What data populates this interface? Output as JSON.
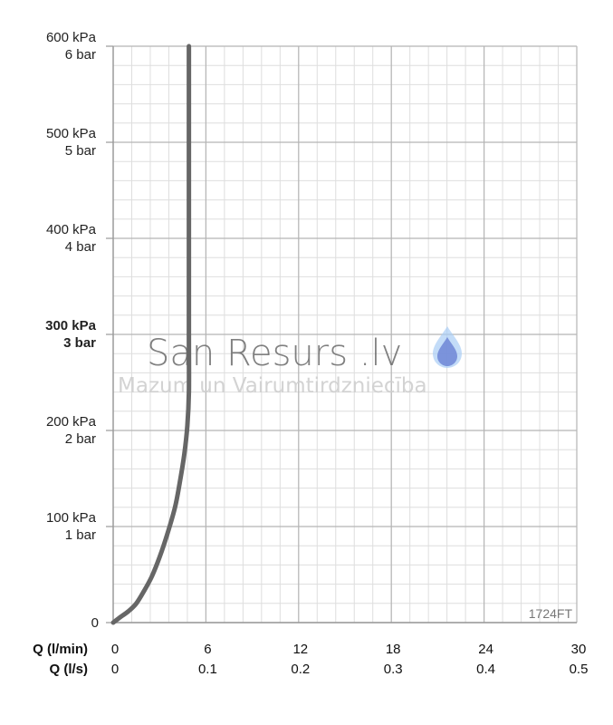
{
  "chart_data": {
    "type": "line",
    "title": "",
    "model_label": "1724FT",
    "x_axis": {
      "label_primary": "Q (l/min)",
      "label_secondary": "Q (l/s)",
      "range": [
        0,
        30
      ],
      "ticks_primary": [
        "0",
        "6",
        "12",
        "18",
        "24",
        "30"
      ],
      "ticks_secondary": [
        "0",
        "0.1",
        "0.2",
        "0.3",
        "0.4",
        "0.5"
      ],
      "tick_values": [
        0,
        6,
        12,
        18,
        24,
        30
      ]
    },
    "y_axis": {
      "range": [
        0,
        600
      ],
      "unit": "kPa",
      "ticks": [
        {
          "value": 0,
          "kpa": "0",
          "bar": ""
        },
        {
          "value": 100,
          "kpa": "100 kPa",
          "bar": "1 bar"
        },
        {
          "value": 200,
          "kpa": "200 kPa",
          "bar": "2 bar"
        },
        {
          "value": 300,
          "kpa": "300 kPa",
          "bar": "3 bar",
          "emphasis": true
        },
        {
          "value": 400,
          "kpa": "400 kPa",
          "bar": "4 bar"
        },
        {
          "value": 500,
          "kpa": "500 kPa",
          "bar": "5 bar"
        },
        {
          "value": 600,
          "kpa": "600 kPa",
          "bar": "6 bar"
        }
      ]
    },
    "grid": {
      "major_x_step": 6,
      "minor_x_step": 1.2,
      "major_y_step": 100,
      "minor_y_step": 20
    },
    "series": [
      {
        "color": "#666666",
        "points": [
          [
            0,
            0
          ],
          [
            0.4,
            5
          ],
          [
            1,
            12
          ],
          [
            1.5,
            20
          ],
          [
            2,
            33
          ],
          [
            2.5,
            48
          ],
          [
            3,
            68
          ],
          [
            3.5,
            92
          ],
          [
            4,
            120
          ],
          [
            4.3,
            145
          ],
          [
            4.6,
            175
          ],
          [
            4.8,
            205
          ],
          [
            4.9,
            240
          ],
          [
            4.9,
            300
          ],
          [
            4.9,
            400
          ],
          [
            4.9,
            500
          ],
          [
            4.9,
            600
          ]
        ]
      }
    ]
  },
  "watermark": {
    "title": "San Resurs .lv",
    "subtitle": "Mazum un Vairumtirdzniecība",
    "drop_color": "#7aa7e0"
  }
}
